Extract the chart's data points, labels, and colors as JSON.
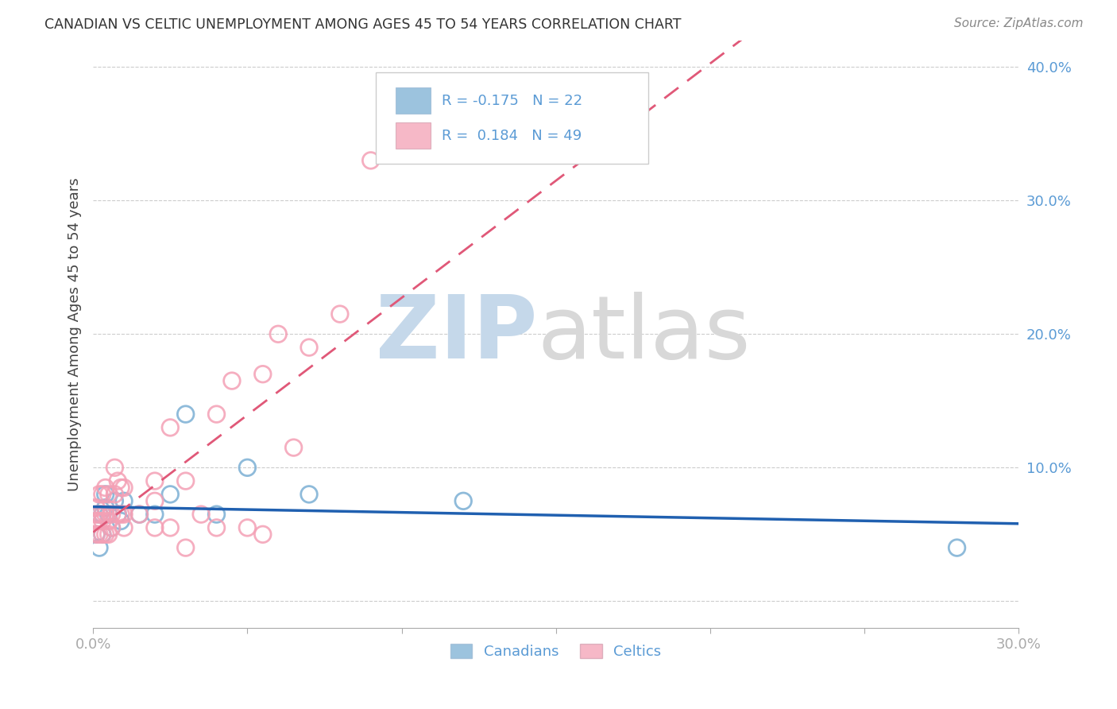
{
  "title": "CANADIAN VS CELTIC UNEMPLOYMENT AMONG AGES 45 TO 54 YEARS CORRELATION CHART",
  "source": "Source: ZipAtlas.com",
  "ylabel": "Unemployment Among Ages 45 to 54 years",
  "xlim": [
    0.0,
    0.3
  ],
  "ylim": [
    -0.02,
    0.42
  ],
  "yticks": [
    0.0,
    0.1,
    0.2,
    0.3,
    0.4
  ],
  "ytick_labels": [
    "",
    "10.0%",
    "20.0%",
    "30.0%",
    "40.0%"
  ],
  "xticks": [
    0.0,
    0.05,
    0.1,
    0.15,
    0.2,
    0.25,
    0.3
  ],
  "xtick_labels": [
    "0.0%",
    "",
    "",
    "",
    "",
    "",
    "30.0%"
  ],
  "canadian_color": "#7bafd4",
  "celtic_color": "#f4a0b5",
  "canadian_line_color": "#2060b0",
  "celtic_line_color": "#e05878",
  "legend_canadian_R": "-0.175",
  "legend_canadian_N": "22",
  "legend_celtic_R": "0.184",
  "legend_celtic_N": "49",
  "canadians_x": [
    0.001,
    0.002,
    0.002,
    0.003,
    0.003,
    0.004,
    0.004,
    0.005,
    0.006,
    0.007,
    0.008,
    0.009,
    0.01,
    0.015,
    0.02,
    0.025,
    0.03,
    0.04,
    0.05,
    0.07,
    0.12,
    0.28
  ],
  "canadians_y": [
    0.05,
    0.04,
    0.065,
    0.05,
    0.065,
    0.07,
    0.08,
    0.065,
    0.055,
    0.075,
    0.065,
    0.06,
    0.075,
    0.065,
    0.065,
    0.08,
    0.14,
    0.065,
    0.1,
    0.08,
    0.075,
    0.04
  ],
  "celtics_x": [
    0.001,
    0.001,
    0.001,
    0.001,
    0.002,
    0.002,
    0.002,
    0.002,
    0.003,
    0.003,
    0.003,
    0.003,
    0.004,
    0.004,
    0.004,
    0.005,
    0.005,
    0.005,
    0.006,
    0.006,
    0.007,
    0.007,
    0.008,
    0.008,
    0.009,
    0.009,
    0.01,
    0.01,
    0.01,
    0.015,
    0.02,
    0.02,
    0.02,
    0.025,
    0.025,
    0.03,
    0.03,
    0.035,
    0.04,
    0.04,
    0.045,
    0.05,
    0.055,
    0.055,
    0.06,
    0.065,
    0.07,
    0.08,
    0.09
  ],
  "celtics_y": [
    0.05,
    0.06,
    0.065,
    0.07,
    0.05,
    0.06,
    0.065,
    0.08,
    0.05,
    0.06,
    0.065,
    0.08,
    0.05,
    0.065,
    0.085,
    0.05,
    0.06,
    0.08,
    0.055,
    0.065,
    0.08,
    0.1,
    0.065,
    0.09,
    0.065,
    0.085,
    0.055,
    0.065,
    0.085,
    0.065,
    0.055,
    0.075,
    0.09,
    0.055,
    0.13,
    0.04,
    0.09,
    0.065,
    0.055,
    0.14,
    0.165,
    0.055,
    0.05,
    0.17,
    0.2,
    0.115,
    0.19,
    0.215,
    0.33
  ],
  "background_color": "#ffffff",
  "grid_color": "#cccccc",
  "title_color": "#333333",
  "axis_label_color": "#5b9bd5",
  "tick_color": "#5b9bd5"
}
